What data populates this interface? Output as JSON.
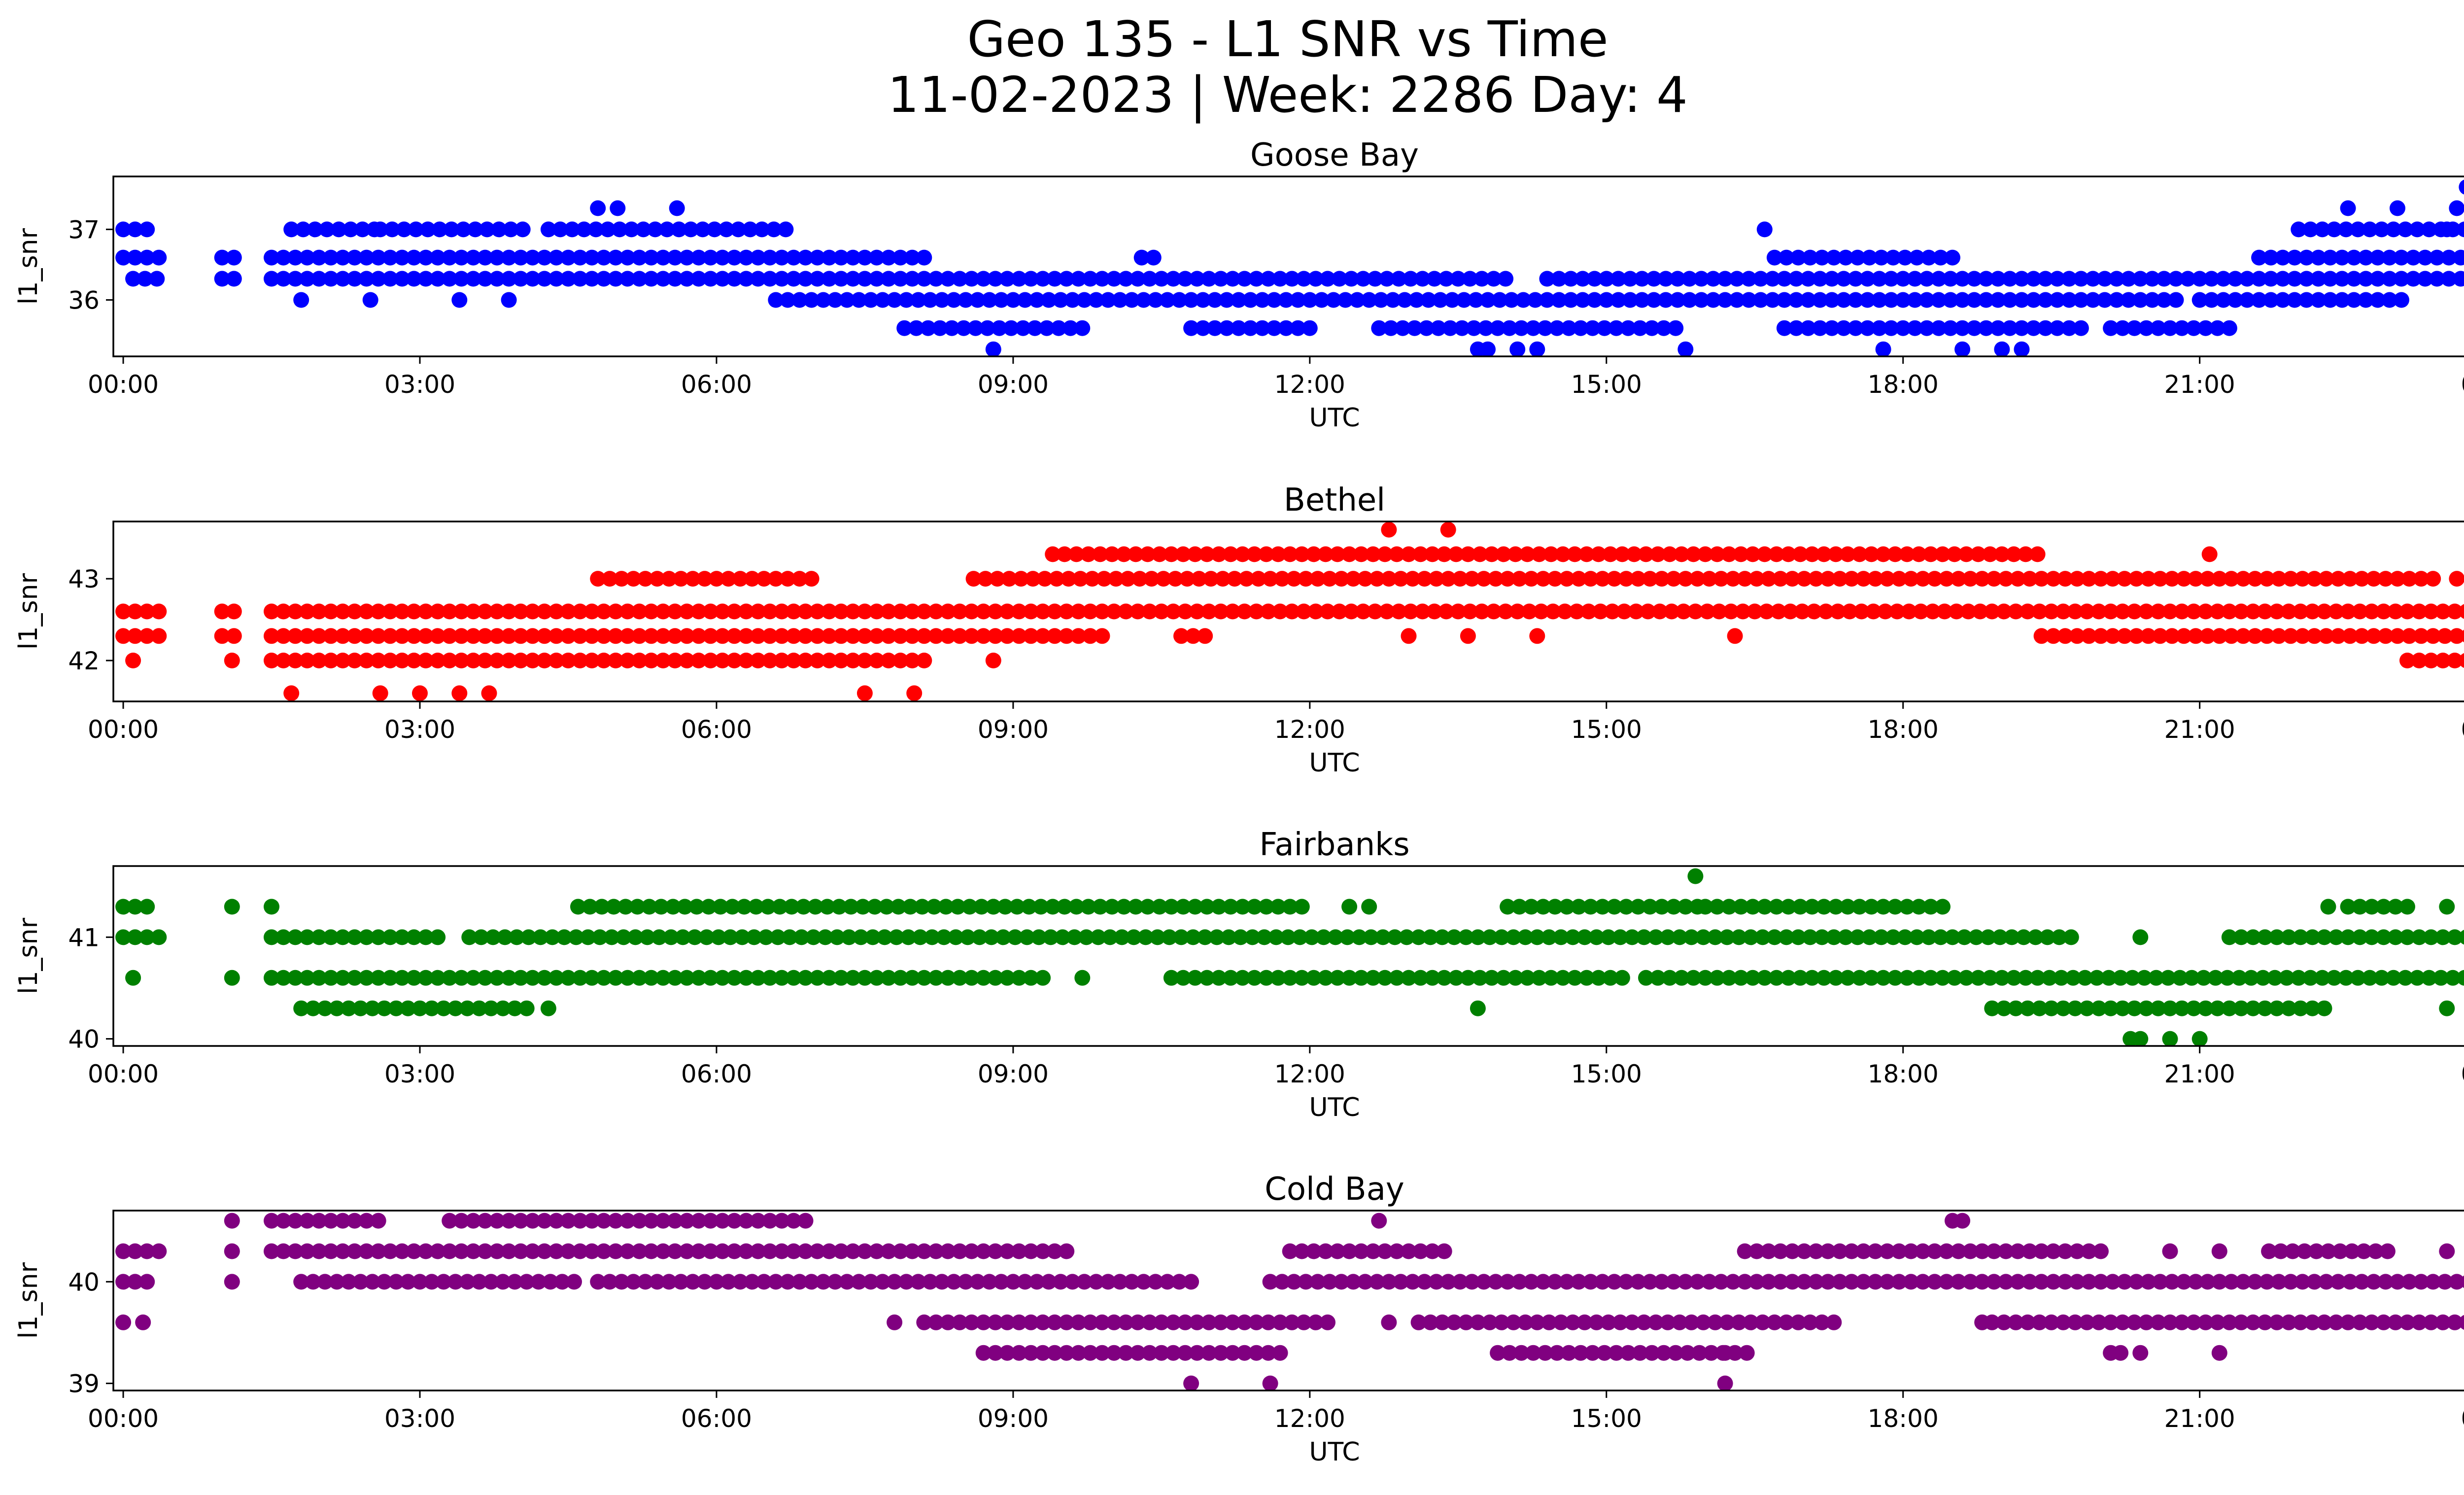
{
  "figure": {
    "title_line1": "Geo 135 - L1 SNR vs Time",
    "title_line2": "11-02-2023 | Week: 2286 Day: 4"
  },
  "chart_data": [
    {
      "type": "scatter",
      "title": "Goose Bay",
      "xlabel": "UTC",
      "ylabel": "l1_snr",
      "color": "#0000ff",
      "xlim": [
        "23:54",
        "24:36"
      ],
      "x_tick_labels": [
        "00:00",
        "03:00",
        "06:00",
        "09:00",
        "12:00",
        "15:00",
        "18:00",
        "21:00",
        "00:00"
      ],
      "ylim": [
        35.2,
        37.75
      ],
      "y_ticks": [
        36,
        37
      ],
      "bands": [
        {
          "y": 37.0,
          "segments": [
            [
              "00:00",
              "00:18"
            ],
            [
              "01:42",
              "02:36"
            ],
            [
              "02:36",
              "04:06"
            ],
            [
              "04:18",
              "06:48"
            ],
            [
              "22:00",
              "24:00"
            ]
          ]
        },
        {
          "y": 36.6,
          "segments": [
            [
              "00:00",
              "00:24"
            ],
            [
              "01:00",
              "01:12"
            ],
            [
              "01:30",
              "07:24"
            ],
            [
              "07:30",
              "08:06"
            ],
            [
              "10:18",
              "10:30"
            ],
            [
              "16:42",
              "18:36"
            ],
            [
              "21:36",
              "24:00"
            ]
          ]
        },
        {
          "y": 36.3,
          "segments": [
            [
              "00:06",
              "00:24"
            ],
            [
              "01:00",
              "01:12"
            ],
            [
              "01:30",
              "14:00"
            ],
            [
              "14:24",
              "24:00"
            ]
          ]
        },
        {
          "y": 36.0,
          "segments": [
            [
              "06:36",
              "20:48"
            ],
            [
              "21:00",
              "23:06"
            ]
          ]
        },
        {
          "y": 35.6,
          "segments": [
            [
              "07:54",
              "09:48"
            ],
            [
              "10:48",
              "12:00"
            ],
            [
              "12:42",
              "15:48"
            ],
            [
              "16:48",
              "19:48"
            ],
            [
              "20:06",
              "21:18"
            ]
          ]
        }
      ],
      "points": [
        {
          "x": "01:48",
          "y": 36.0
        },
        {
          "x": "02:30",
          "y": 36.0
        },
        {
          "x": "03:24",
          "y": 36.0
        },
        {
          "x": "03:54",
          "y": 36.0
        },
        {
          "x": "04:48",
          "y": 37.3
        },
        {
          "x": "05:00",
          "y": 37.3
        },
        {
          "x": "05:36",
          "y": 37.3
        },
        {
          "x": "08:48",
          "y": 35.3
        },
        {
          "x": "13:42",
          "y": 35.3
        },
        {
          "x": "13:48",
          "y": 35.3
        },
        {
          "x": "14:06",
          "y": 35.3
        },
        {
          "x": "14:18",
          "y": 35.3
        },
        {
          "x": "15:48",
          "y": 35.3
        },
        {
          "x": "17:48",
          "y": 35.3
        },
        {
          "x": "18:36",
          "y": 35.3
        },
        {
          "x": "19:00",
          "y": 35.3
        },
        {
          "x": "19:12",
          "y": 35.3
        },
        {
          "x": "16:36",
          "y": 37.0
        },
        {
          "x": "22:30",
          "y": 37.3
        },
        {
          "x": "23:00",
          "y": 37.3
        },
        {
          "x": "23:36",
          "y": 37.3
        },
        {
          "x": "23:48",
          "y": 37.3
        },
        {
          "x": "23:42",
          "y": 37.6
        },
        {
          "x": "23:30",
          "y": 37.0
        }
      ]
    },
    {
      "type": "scatter",
      "title": "Bethel",
      "xlabel": "UTC",
      "ylabel": "l1_snr",
      "color": "#ff0000",
      "xlim": [
        "23:54",
        "24:36"
      ],
      "x_tick_labels": [
        "00:00",
        "03:00",
        "06:00",
        "09:00",
        "12:00",
        "15:00",
        "18:00",
        "21:00",
        "00:00"
      ],
      "ylim": [
        41.5,
        43.7
      ],
      "y_ticks": [
        42,
        43
      ],
      "bands": [
        {
          "y": 43.3,
          "segments": [
            [
              "09:24",
              "19:24"
            ]
          ]
        },
        {
          "y": 43.0,
          "segments": [
            [
              "04:48",
              "07:00"
            ],
            [
              "08:36",
              "23:24"
            ]
          ]
        },
        {
          "y": 42.6,
          "segments": [
            [
              "00:00",
              "00:24"
            ],
            [
              "01:00",
              "01:12"
            ],
            [
              "01:30",
              "24:00"
            ]
          ]
        },
        {
          "y": 42.3,
          "segments": [
            [
              "00:00",
              "00:24"
            ],
            [
              "01:00",
              "01:12"
            ],
            [
              "01:30",
              "09:54"
            ],
            [
              "10:42",
              "11:00"
            ],
            [
              "19:24",
              "24:00"
            ]
          ]
        },
        {
          "y": 42.0,
          "segments": [
            [
              "00:06",
              "00:12"
            ],
            [
              "01:06",
              "01:12"
            ],
            [
              "01:30",
              "08:12"
            ],
            [
              "23:06",
              "24:00"
            ]
          ]
        }
      ],
      "points": [
        {
          "x": "01:42",
          "y": 41.6
        },
        {
          "x": "02:36",
          "y": 41.6
        },
        {
          "x": "03:00",
          "y": 41.6
        },
        {
          "x": "03:24",
          "y": 41.6
        },
        {
          "x": "03:42",
          "y": 41.6
        },
        {
          "x": "07:30",
          "y": 41.6
        },
        {
          "x": "08:00",
          "y": 41.6
        },
        {
          "x": "12:48",
          "y": 43.6
        },
        {
          "x": "13:24",
          "y": 43.6
        },
        {
          "x": "13:00",
          "y": 42.3
        },
        {
          "x": "13:36",
          "y": 42.3
        },
        {
          "x": "14:18",
          "y": 42.3
        },
        {
          "x": "16:18",
          "y": 42.3
        },
        {
          "x": "21:06",
          "y": 43.3
        },
        {
          "x": "23:36",
          "y": 43.0
        },
        {
          "x": "08:48",
          "y": 42.0
        }
      ]
    },
    {
      "type": "scatter",
      "title": "Fairbanks",
      "xlabel": "UTC",
      "ylabel": "l1_snr",
      "color": "#008000",
      "xlim": [
        "23:54",
        "24:36"
      ],
      "x_tick_labels": [
        "00:00",
        "03:00",
        "06:00",
        "09:00",
        "12:00",
        "15:00",
        "18:00",
        "21:00",
        "00:00"
      ],
      "ylim": [
        39.93,
        41.7
      ],
      "y_ticks": [
        40,
        41
      ],
      "bands": [
        {
          "y": 41.3,
          "segments": [
            [
              "00:00",
              "00:18"
            ],
            [
              "04:36",
              "08:48"
            ],
            [
              "08:48",
              "12:00"
            ],
            [
              "14:00",
              "16:00"
            ],
            [
              "16:00",
              "18:30"
            ],
            [
              "22:30",
              "23:06"
            ]
          ]
        },
        {
          "y": 41.0,
          "segments": [
            [
              "00:00",
              "00:24"
            ],
            [
              "01:30",
              "03:12"
            ],
            [
              "03:30",
              "19:48"
            ],
            [
              "21:18",
              "24:00"
            ]
          ]
        },
        {
          "y": 40.6,
          "segments": [
            [
              "01:30",
              "09:18"
            ],
            [
              "10:36",
              "15:12"
            ],
            [
              "15:24",
              "24:00"
            ]
          ]
        },
        {
          "y": 40.3,
          "segments": [
            [
              "01:48",
              "04:06"
            ],
            [
              "18:54",
              "22:18"
            ],
            [
              "23:48",
              "24:00"
            ]
          ]
        }
      ],
      "points": [
        {
          "x": "00:06",
          "y": 40.6
        },
        {
          "x": "01:06",
          "y": 41.3
        },
        {
          "x": "01:30",
          "y": 41.3
        },
        {
          "x": "01:06",
          "y": 40.6
        },
        {
          "x": "04:18",
          "y": 40.3
        },
        {
          "x": "09:42",
          "y": 40.6
        },
        {
          "x": "12:24",
          "y": 41.3
        },
        {
          "x": "12:36",
          "y": 41.3
        },
        {
          "x": "13:42",
          "y": 40.3
        },
        {
          "x": "15:54",
          "y": 41.6
        },
        {
          "x": "20:18",
          "y": 40.0
        },
        {
          "x": "20:24",
          "y": 40.0
        },
        {
          "x": "20:42",
          "y": 40.0
        },
        {
          "x": "21:00",
          "y": 40.0
        },
        {
          "x": "20:24",
          "y": 41.0
        },
        {
          "x": "22:18",
          "y": 41.3
        },
        {
          "x": "23:30",
          "y": 41.3
        },
        {
          "x": "23:30",
          "y": 40.3
        }
      ]
    },
    {
      "type": "scatter",
      "title": "Cold Bay",
      "xlabel": "UTC",
      "ylabel": "l1_snr",
      "color": "#800080",
      "xlim": [
        "23:54",
        "24:36"
      ],
      "x_tick_labels": [
        "00:00",
        "03:00",
        "06:00",
        "09:00",
        "12:00",
        "15:00",
        "18:00",
        "21:00",
        "00:00"
      ],
      "ylim": [
        38.93,
        40.7
      ],
      "y_ticks": [
        39,
        40
      ],
      "bands": [
        {
          "y": 40.6,
          "segments": [
            [
              "01:30",
              "02:36"
            ],
            [
              "03:18",
              "07:00"
            ]
          ]
        },
        {
          "y": 40.3,
          "segments": [
            [
              "00:00",
              "00:24"
            ],
            [
              "01:30",
              "09:36"
            ],
            [
              "11:48",
              "13:24"
            ],
            [
              "16:24",
              "20:06"
            ],
            [
              "21:42",
              "23:00"
            ]
          ]
        },
        {
          "y": 40.0,
          "segments": [
            [
              "00:00",
              "00:18"
            ],
            [
              "01:06",
              "01:12"
            ],
            [
              "01:48",
              "04:36"
            ],
            [
              "04:48",
              "10:48"
            ],
            [
              "11:36",
              "24:00"
            ]
          ]
        },
        {
          "y": 39.6,
          "segments": [
            [
              "08:06",
              "12:12"
            ],
            [
              "13:06",
              "17:24"
            ],
            [
              "18:54",
              "24:00"
            ]
          ]
        },
        {
          "y": 39.3,
          "segments": [
            [
              "08:42",
              "11:42"
            ],
            [
              "13:54",
              "16:30"
            ]
          ]
        }
      ],
      "points": [
        {
          "x": "00:00",
          "y": 39.6
        },
        {
          "x": "00:12",
          "y": 39.6
        },
        {
          "x": "01:06",
          "y": 40.6
        },
        {
          "x": "01:06",
          "y": 40.3
        },
        {
          "x": "07:48",
          "y": 39.6
        },
        {
          "x": "10:48",
          "y": 39.0
        },
        {
          "x": "11:36",
          "y": 39.0
        },
        {
          "x": "12:42",
          "y": 40.6
        },
        {
          "x": "12:48",
          "y": 39.6
        },
        {
          "x": "16:12",
          "y": 39.0
        },
        {
          "x": "16:12",
          "y": 39.3
        },
        {
          "x": "18:30",
          "y": 40.6
        },
        {
          "x": "18:36",
          "y": 40.6
        },
        {
          "x": "18:48",
          "y": 39.6
        },
        {
          "x": "20:06",
          "y": 39.3
        },
        {
          "x": "20:12",
          "y": 39.3
        },
        {
          "x": "20:24",
          "y": 39.3
        },
        {
          "x": "21:12",
          "y": 39.3
        },
        {
          "x": "20:42",
          "y": 40.3
        },
        {
          "x": "21:12",
          "y": 40.3
        },
        {
          "x": "23:30",
          "y": 40.3
        }
      ]
    }
  ]
}
